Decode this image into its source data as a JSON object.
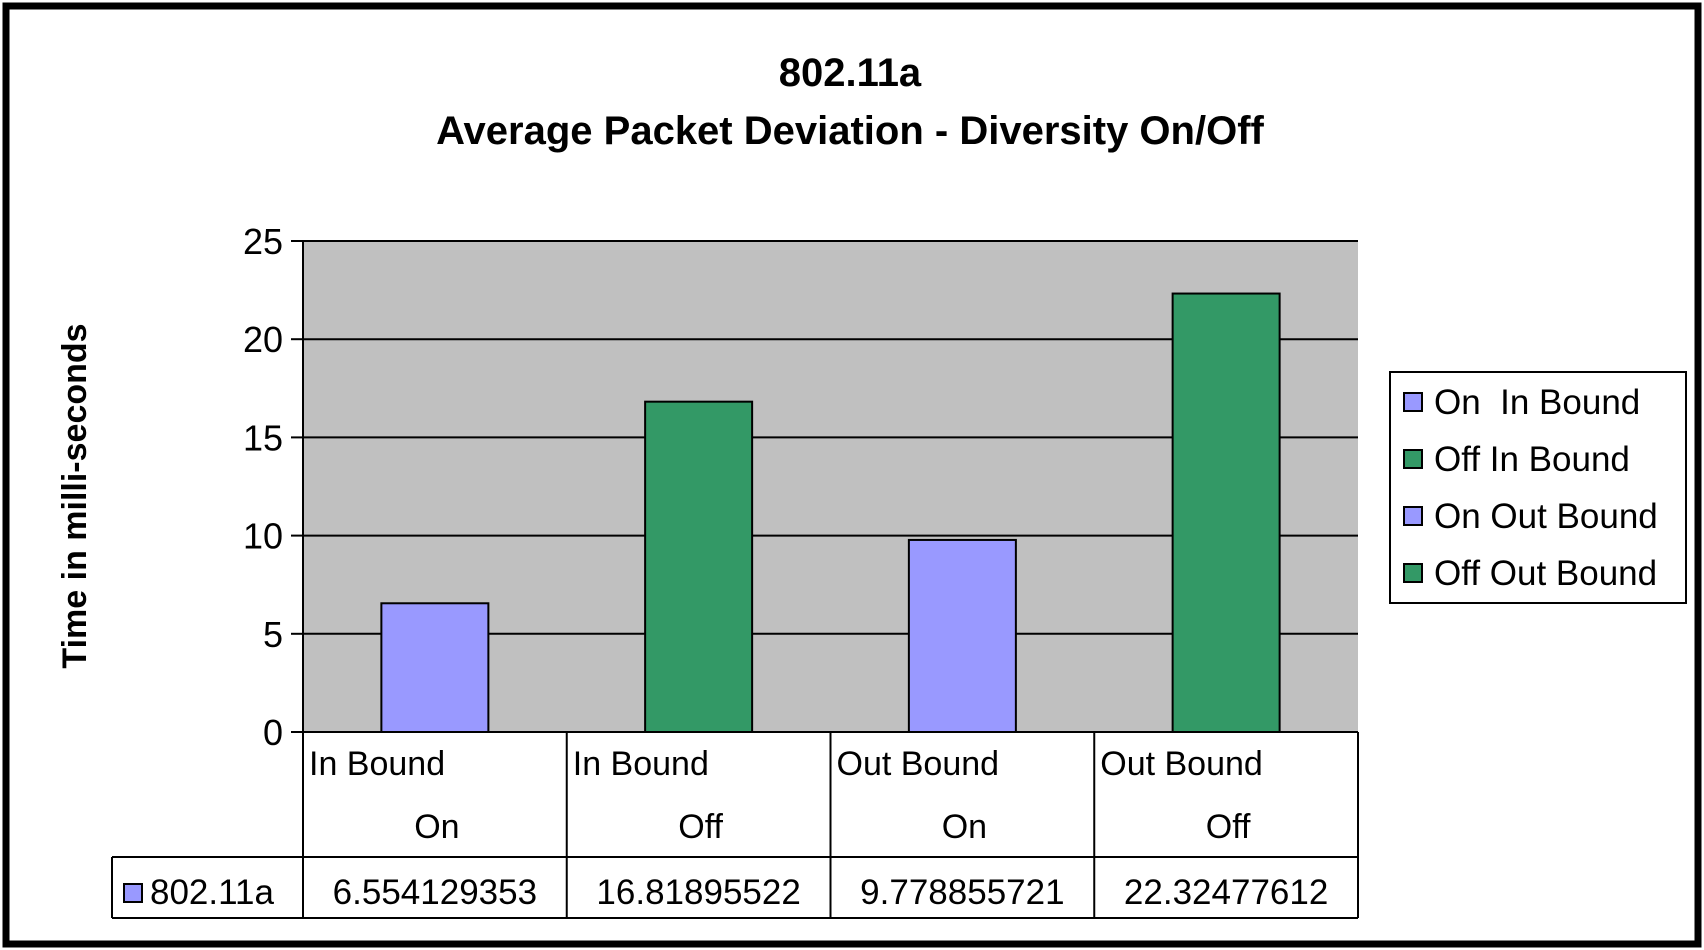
{
  "chart_data": {
    "type": "bar",
    "title": "802.11a",
    "subtitle": "Average Packet Deviation - Diversity On/Off",
    "ylabel": "Time in milli-seconds",
    "xlabel": "",
    "ylim": [
      0,
      25
    ],
    "yticks": [
      0,
      5,
      10,
      15,
      20,
      25
    ],
    "grid": true,
    "legend_position": "right",
    "categories": [
      {
        "line1": "In Bound",
        "line2": "On"
      },
      {
        "line1": "In Bound",
        "line2": "Off"
      },
      {
        "line1": "Out Bound",
        "line2": "On"
      },
      {
        "line1": "Out Bound",
        "line2": "Off"
      }
    ],
    "series": [
      {
        "name": "802.11a",
        "values": [
          6.554129353,
          16.81895522,
          9.778855721,
          22.32477612
        ],
        "value_labels": [
          "6.554129353",
          "16.81895522",
          "9.778855721",
          "22.32477612"
        ],
        "colors": [
          "#9999ff",
          "#339966",
          "#9999ff",
          "#339966"
        ]
      }
    ],
    "legend": [
      {
        "label": "On  In Bound",
        "color": "#9999ff"
      },
      {
        "label": "Off In Bound",
        "color": "#339966"
      },
      {
        "label": "On Out Bound",
        "color": "#9999ff"
      },
      {
        "label": "Off Out Bound",
        "color": "#339966"
      }
    ],
    "plot_background": "#c0c0c0"
  }
}
